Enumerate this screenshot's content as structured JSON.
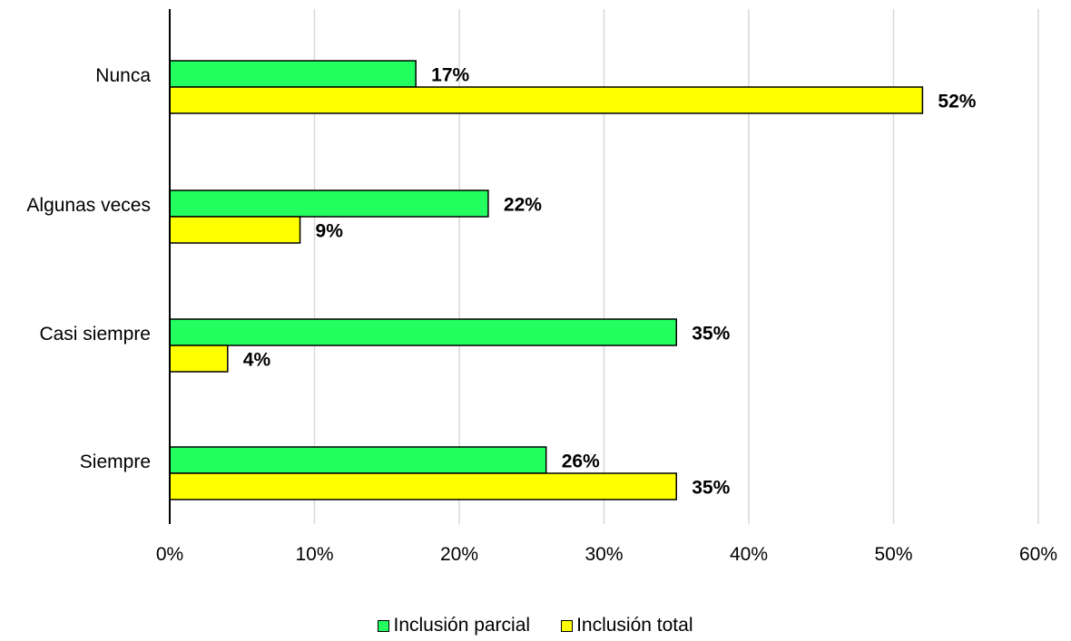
{
  "chart_data": {
    "type": "bar",
    "orientation": "horizontal",
    "categories": [
      "Nunca",
      "Algunas veces",
      "Casi siempre",
      "Siempre"
    ],
    "series": [
      {
        "name": "Inclusión parcial",
        "color": "#22ff5f",
        "values": [
          17,
          22,
          35,
          26
        ],
        "labels": [
          "17%",
          "22%",
          "35%",
          "26%"
        ]
      },
      {
        "name": "Inclusión total",
        "color": "#ffff00",
        "values": [
          52,
          9,
          4,
          35
        ],
        "labels": [
          "52%",
          "9%",
          "4%",
          "35%"
        ]
      }
    ],
    "x_ticks": [
      "0%",
      "10%",
      "20%",
      "30%",
      "40%",
      "50%",
      "60%"
    ],
    "xlim": [
      0,
      60
    ],
    "grid": "vertical",
    "legend_position": "bottom"
  }
}
